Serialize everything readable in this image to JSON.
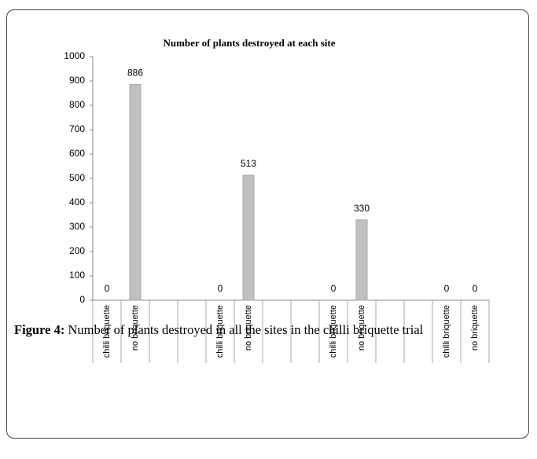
{
  "chart_data": {
    "type": "bar",
    "title": "Number of plants destroyed at each site",
    "categories": [
      "chilli briquette",
      "no briquette",
      null,
      null,
      "chilli briquette",
      "no briquette",
      null,
      null,
      "chilli briquette",
      "no briquette",
      null,
      null,
      "chilli briquette",
      "no briquette"
    ],
    "values": [
      0,
      886,
      null,
      null,
      0,
      513,
      null,
      null,
      0,
      330,
      null,
      null,
      0,
      0
    ],
    "color": "#c0c0c0",
    "ylim": [
      0,
      1000
    ],
    "yticks": [
      0,
      100,
      200,
      300,
      400,
      500,
      600,
      700,
      800,
      900,
      1000
    ],
    "grid": false
  },
  "caption": {
    "label": "Figure 4:",
    "text": "Number of plants destroyed in all the sites in the chilli briquette trial"
  }
}
